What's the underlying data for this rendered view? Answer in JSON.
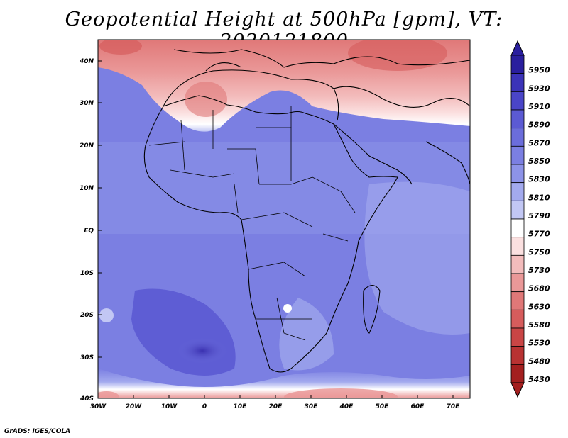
{
  "title": "Geopotential Height at 500hPa [gpm], VT: 2020121800",
  "footer": "GrADS: IGES/COLA",
  "map": {
    "lat_labels": [
      "40N",
      "30N",
      "20N",
      "10N",
      "EQ",
      "10S",
      "20S",
      "30S",
      "40S"
    ],
    "lon_labels": [
      "30W",
      "20W",
      "10W",
      "0",
      "10E",
      "20E",
      "30E",
      "40E",
      "50E",
      "60E",
      "70E"
    ],
    "lon_range": [
      -30,
      75
    ],
    "lat_range": [
      -40,
      45
    ],
    "field": "Geopotential height at 500 hPa",
    "units": "gpm"
  },
  "colorbar": {
    "levels": [
      "5950",
      "5930",
      "5910",
      "5890",
      "5870",
      "5850",
      "5830",
      "5810",
      "5790",
      "5770",
      "5750",
      "5730",
      "5680",
      "5630",
      "5580",
      "5530",
      "5480",
      "5430"
    ],
    "colors": [
      "#2a1f9e",
      "#3b33b8",
      "#4a45c8",
      "#5b5ad3",
      "#6b6ddb",
      "#7b7fe2",
      "#8d93e8",
      "#a3aaee",
      "#c2c7f4",
      "#ffffff",
      "#fbe0e0",
      "#f3bcbc",
      "#ea9898",
      "#e07878",
      "#d65c5c",
      "#c94545",
      "#b83232",
      "#a31f1f"
    ]
  }
}
